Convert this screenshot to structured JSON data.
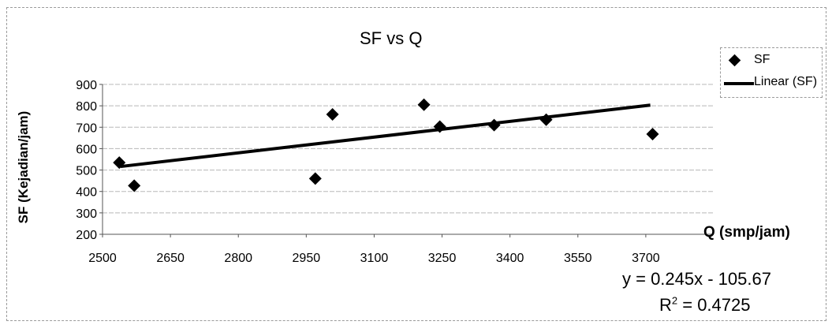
{
  "chart_data": {
    "type": "scatter",
    "title": "SF vs Q",
    "xlabel": "Q (smp/jam)",
    "ylabel": "SF (Kejadian/jam)",
    "xlim": [
      2500,
      3850
    ],
    "ylim": [
      200,
      900
    ],
    "x_ticks": [
      2500,
      2650,
      2800,
      2950,
      3100,
      3250,
      3400,
      3550,
      3700
    ],
    "x_tick_labels": [
      "2500",
      "2650",
      "2800",
      "2950",
      "3100",
      "3250",
      "3400",
      "3550",
      "3700"
    ],
    "y_ticks": [
      200,
      300,
      400,
      500,
      600,
      700,
      800,
      900
    ],
    "y_tick_labels": [
      "200",
      "300",
      "400",
      "500",
      "600",
      "700",
      "800",
      "900"
    ],
    "grid": true,
    "legend_position": "top-right",
    "series": [
      {
        "name": "SF",
        "marker": "diamond",
        "color": "#000000",
        "points": [
          {
            "x": 2537,
            "y": 535
          },
          {
            "x": 2570,
            "y": 427
          },
          {
            "x": 2970,
            "y": 460
          },
          {
            "x": 3008,
            "y": 760
          },
          {
            "x": 3210,
            "y": 805
          },
          {
            "x": 3245,
            "y": 703
          },
          {
            "x": 3365,
            "y": 710
          },
          {
            "x": 3480,
            "y": 735
          },
          {
            "x": 3715,
            "y": 668
          }
        ]
      }
    ],
    "trendline": {
      "name": "Linear (SF)",
      "type": "linear",
      "x_range": [
        2540,
        3710
      ],
      "slope": 0.245,
      "intercept": -105.67,
      "equation": "y = 0.245x - 105.67",
      "r2_label": "R",
      "r2_exponent": "2",
      "r2_value_text": " = 0.4725"
    }
  }
}
